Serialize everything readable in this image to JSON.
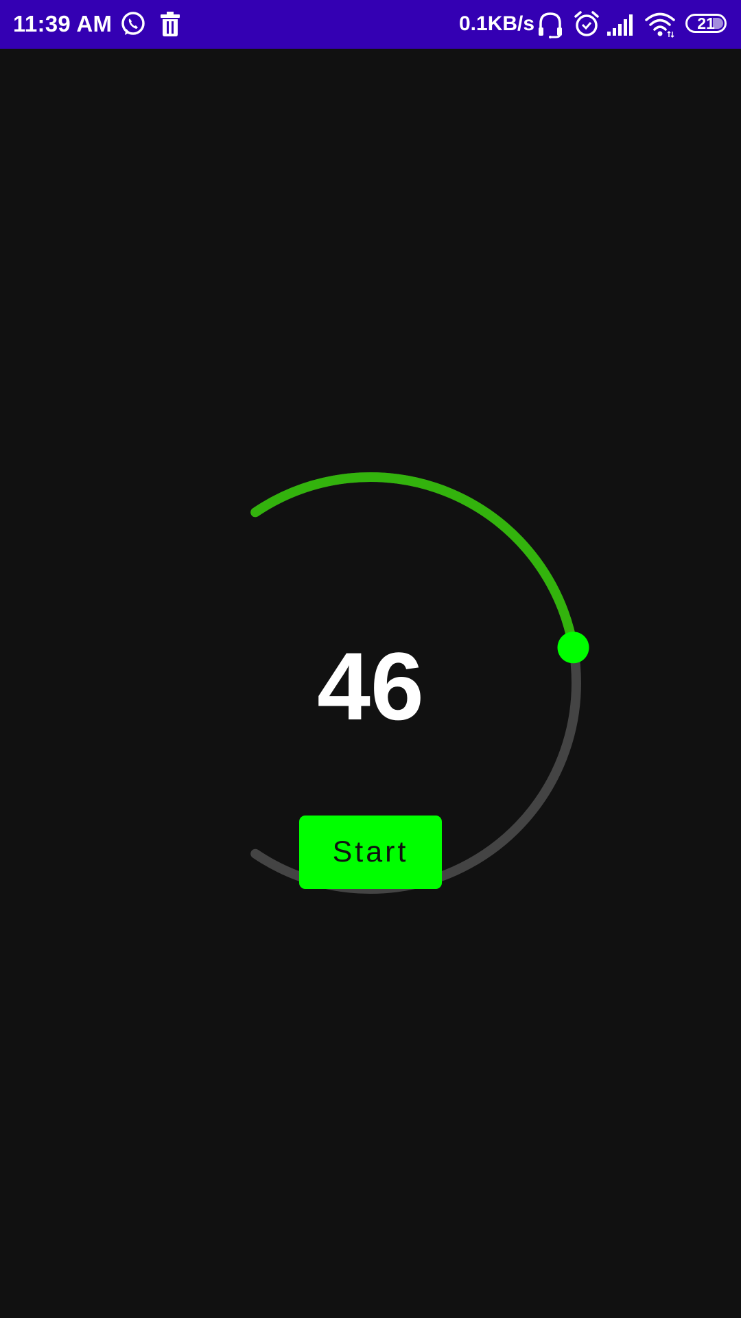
{
  "status_bar": {
    "time": "11:39 AM",
    "net_speed": "0.1KB/s",
    "battery_level": "21",
    "icons": [
      "whatsapp-icon",
      "trash-icon",
      "headset-icon",
      "alarm-icon",
      "signal-icon",
      "wifi-icon",
      "battery-icon"
    ],
    "background_color": "#3400b3"
  },
  "gauge": {
    "value": "46",
    "progress": 0.46,
    "progress_color": "#33b30d",
    "track_color": "#444444",
    "thumb_color": "#00ff00"
  },
  "start_button": {
    "label": "Start",
    "color": "#00ff00"
  }
}
